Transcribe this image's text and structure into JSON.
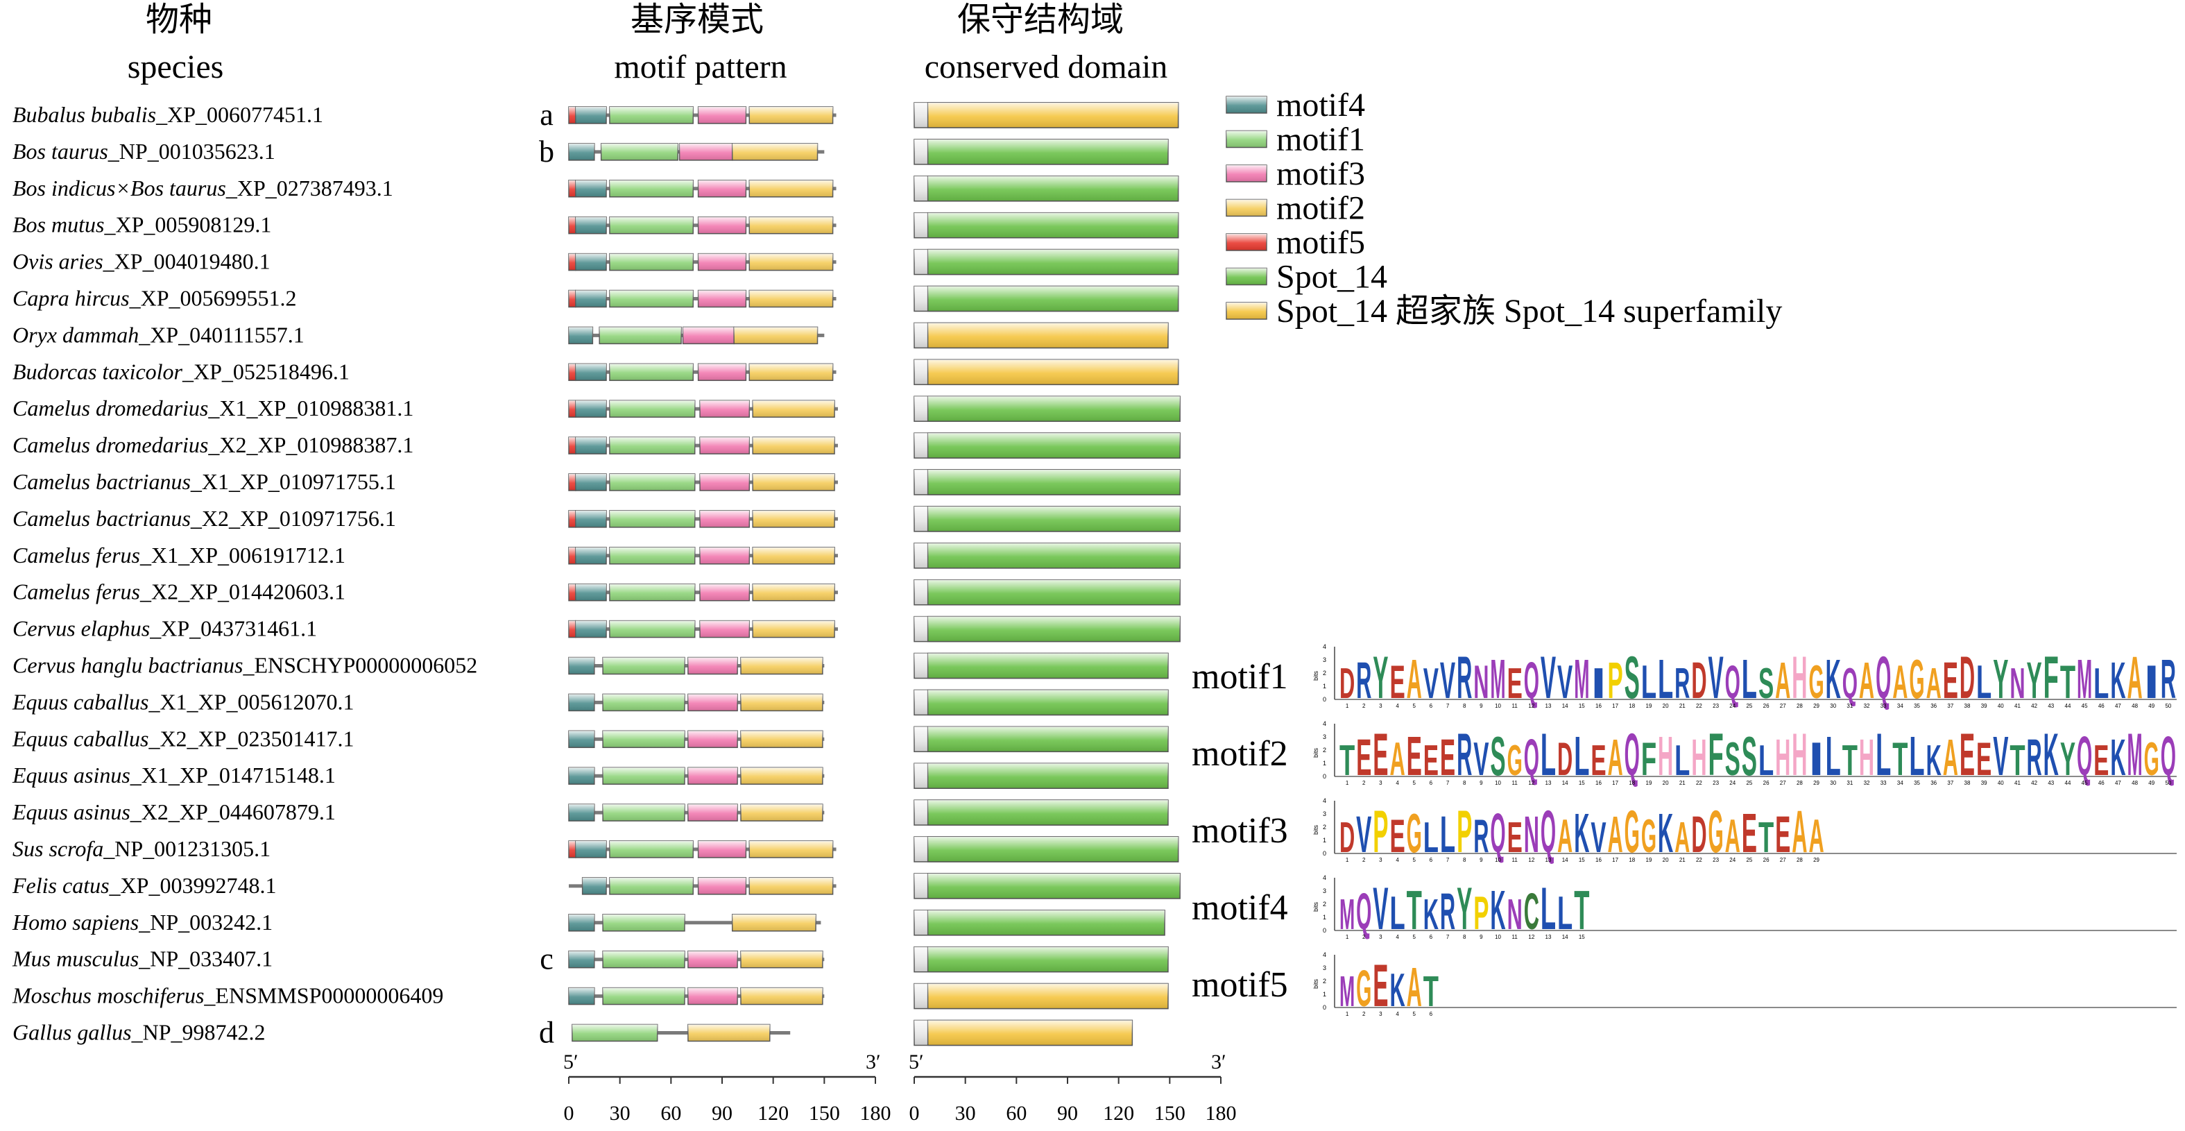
{
  "headers": {
    "species_cn": "物种",
    "species_en": "species",
    "motif_cn": "基序模式",
    "motif_en": "motif pattern",
    "domain_cn": "保守结构域",
    "domain_en": "conserved domain"
  },
  "colors": {
    "motif1": "#8fd47a",
    "motif2": "#f5cc5a",
    "motif3": "#f27ab0",
    "motif4": "#4f8f8f",
    "motif5": "#e8392f",
    "Spot_14": "#6cc24a",
    "superfamily": "#f5c540",
    "line": "#7a7a7a"
  },
  "legend": [
    {
      "key": "motif4",
      "label": "motif4"
    },
    {
      "key": "motif1",
      "label": "motif1"
    },
    {
      "key": "motif3",
      "label": "motif3"
    },
    {
      "key": "motif2",
      "label": "motif2"
    },
    {
      "key": "motif5",
      "label": "motif5"
    },
    {
      "key": "Spot_14",
      "label": "Spot_14"
    },
    {
      "key": "superfamily",
      "label": "Spot_14 超家族 Spot_14 superfamily"
    }
  ],
  "axis": {
    "ticks": [
      0,
      30,
      60,
      90,
      120,
      150,
      180
    ],
    "five_prime": "5′",
    "three_prime": "3′"
  },
  "patterns": {
    "A": {
      "motifs": [
        {
          "m": "motif5",
          "s": 0,
          "e": 4
        },
        {
          "m": "motif4",
          "s": 4,
          "e": 22
        },
        {
          "m": "motif1",
          "s": 24,
          "e": 73
        },
        {
          "m": "motif3",
          "s": 76,
          "e": 104
        },
        {
          "m": "motif2",
          "s": 106,
          "e": 155
        }
      ],
      "line": [
        0,
        157
      ],
      "domain": {
        "type": "superfamily",
        "s": 0,
        "e": 155
      }
    },
    "B": {
      "motifs": [
        {
          "m": "motif4",
          "s": 0,
          "e": 15
        },
        {
          "m": "motif1",
          "s": 19,
          "e": 64
        },
        {
          "m": "motif3",
          "s": 65,
          "e": 96
        },
        {
          "m": "motif2",
          "s": 96,
          "e": 146
        }
      ],
      "line": [
        0,
        150
      ],
      "domain": {
        "type": "Spot_14",
        "s": 0,
        "e": 149
      }
    },
    "C": {
      "motifs": [
        {
          "m": "motif5",
          "s": 0,
          "e": 4
        },
        {
          "m": "motif4",
          "s": 4,
          "e": 22
        },
        {
          "m": "motif1",
          "s": 24,
          "e": 73
        },
        {
          "m": "motif3",
          "s": 76,
          "e": 104
        },
        {
          "m": "motif2",
          "s": 106,
          "e": 155
        }
      ],
      "line": [
        0,
        157
      ],
      "domain": {
        "type": "Spot_14",
        "s": 0,
        "e": 155
      }
    },
    "D": {
      "motifs": [
        {
          "m": "motif4",
          "s": 0,
          "e": 14
        },
        {
          "m": "motif1",
          "s": 18,
          "e": 66
        },
        {
          "m": "motif3",
          "s": 67,
          "e": 97
        },
        {
          "m": "motif2",
          "s": 97,
          "e": 146
        }
      ],
      "line": [
        0,
        150
      ],
      "domain": {
        "type": "superfamily",
        "s": 0,
        "e": 149
      }
    },
    "E": {
      "motifs": [
        {
          "m": "motif5",
          "s": 0,
          "e": 4
        },
        {
          "m": "motif4",
          "s": 4,
          "e": 22
        },
        {
          "m": "motif1",
          "s": 24,
          "e": 74
        },
        {
          "m": "motif3",
          "s": 77,
          "e": 106
        },
        {
          "m": "motif2",
          "s": 108,
          "e": 156
        }
      ],
      "line": [
        0,
        158
      ],
      "domain": {
        "type": "Spot_14",
        "s": 0,
        "e": 156
      }
    },
    "F": {
      "motifs": [
        {
          "m": "motif4",
          "s": 0,
          "e": 15
        },
        {
          "m": "motif1",
          "s": 20,
          "e": 68
        },
        {
          "m": "motif3",
          "s": 70,
          "e": 99
        },
        {
          "m": "motif2",
          "s": 101,
          "e": 149
        }
      ],
      "line": [
        0,
        150
      ],
      "domain": {
        "type": "Spot_14",
        "s": 0,
        "e": 149
      }
    },
    "G": {
      "motifs": [
        {
          "m": "motif4",
          "s": 0,
          "e": 15
        },
        {
          "m": "motif1",
          "s": 20,
          "e": 68
        },
        {
          "m": "motif3",
          "s": 70,
          "e": 99
        },
        {
          "m": "motif2",
          "s": 101,
          "e": 149
        }
      ],
      "line": [
        0,
        150
      ],
      "domain": {
        "type": "superfamily",
        "s": 0,
        "e": 149
      }
    },
    "H": {
      "motifs": [
        {
          "m": "motif4",
          "s": 0,
          "e": 15
        },
        {
          "m": "motif1",
          "s": 20,
          "e": 68
        },
        {
          "m": "motif2",
          "s": 96,
          "e": 145
        }
      ],
      "line": [
        0,
        148
      ],
      "domain": {
        "type": "Spot_14",
        "s": 0,
        "e": 147
      }
    },
    "I": {
      "motifs": [
        {
          "m": "motif4",
          "s": 0,
          "e": 15
        },
        {
          "m": "motif1",
          "s": 20,
          "e": 68
        },
        {
          "m": "motif3",
          "s": 70,
          "e": 99
        },
        {
          "m": "motif2",
          "s": 101,
          "e": 149
        }
      ],
      "line": [
        0,
        150
      ],
      "domain": {
        "type": "superfamily",
        "s": 0,
        "e": 149
      }
    },
    "J": {
      "motifs": [
        {
          "m": "motif1",
          "s": 2,
          "e": 52
        },
        {
          "m": "motif2",
          "s": 70,
          "e": 118
        }
      ],
      "line": [
        2,
        130
      ],
      "domain": {
        "type": "superfamily",
        "s": 0,
        "e": 128
      }
    },
    "K": {
      "motifs": [
        {
          "m": "motif4",
          "s": 8,
          "e": 22
        },
        {
          "m": "motif1",
          "s": 24,
          "e": 73
        },
        {
          "m": "motif3",
          "s": 76,
          "e": 104
        },
        {
          "m": "motif2",
          "s": 106,
          "e": 155
        }
      ],
      "line": [
        0,
        157
      ],
      "domain": {
        "type": "Spot_14",
        "s": 0,
        "e": 156
      }
    }
  },
  "rows": [
    {
      "genus": "Bubalus bubalis",
      "acc": "_XP_006077451.1",
      "letter": "a",
      "p": "A"
    },
    {
      "genus": "Bos taurus",
      "acc": "_NP_001035623.1",
      "letter": "b",
      "p": "B"
    },
    {
      "genus": "Bos indicus×Bos taurus",
      "acc": "_XP_027387493.1",
      "letter": "",
      "p": "C"
    },
    {
      "genus": "Bos mutus",
      "acc": "_XP_005908129.1",
      "letter": "",
      "p": "C"
    },
    {
      "genus": "Ovis aries",
      "acc": "_XP_004019480.1",
      "letter": "",
      "p": "C"
    },
    {
      "genus": "Capra hircus",
      "acc": "_XP_005699551.2",
      "letter": "",
      "p": "C"
    },
    {
      "genus": "Oryx dammah",
      "acc": "_XP_040111557.1",
      "letter": "",
      "p": "D"
    },
    {
      "genus": "Budorcas taxicolor",
      "acc": "_XP_052518496.1",
      "letter": "",
      "p": "A"
    },
    {
      "genus": "Camelus dromedarius",
      "acc": "_X1_XP_010988381.1",
      "letter": "",
      "p": "E"
    },
    {
      "genus": "Camelus dromedarius",
      "acc": "_X2_XP_010988387.1",
      "letter": "",
      "p": "E"
    },
    {
      "genus": "Camelus bactrianus",
      "acc": "_X1_XP_010971755.1",
      "letter": "",
      "p": "E"
    },
    {
      "genus": "Camelus bactrianus",
      "acc": "_X2_XP_010971756.1",
      "letter": "",
      "p": "E"
    },
    {
      "genus": "Camelus ferus",
      "acc": "_X1_XP_006191712.1",
      "letter": "",
      "p": "E"
    },
    {
      "genus": "Camelus ferus",
      "acc": "_X2_XP_014420603.1",
      "letter": "",
      "p": "E"
    },
    {
      "genus": "Cervus elaphus",
      "acc": "_XP_043731461.1",
      "letter": "",
      "p": "E"
    },
    {
      "genus": "Cervus hanglu bactrianus",
      "acc": "_ENSCHYP00000006052",
      "letter": "",
      "p": "F"
    },
    {
      "genus": "Equus caballus",
      "acc": "_X1_XP_005612070.1",
      "letter": "",
      "p": "F"
    },
    {
      "genus": "Equus caballus",
      "acc": "_X2_XP_023501417.1",
      "letter": "",
      "p": "F"
    },
    {
      "genus": "Equus asinus",
      "acc": "_X1_XP_014715148.1",
      "letter": "",
      "p": "F"
    },
    {
      "genus": "Equus asinus",
      "acc": "_X2_XP_044607879.1",
      "letter": "",
      "p": "F"
    },
    {
      "genus": "Sus scrofa",
      "acc": "_NP_001231305.1",
      "letter": "",
      "p": "C"
    },
    {
      "genus": "Felis catus",
      "acc": "_XP_003992748.1",
      "letter": "",
      "p": "K"
    },
    {
      "genus": "Homo sapiens",
      "acc": "_NP_003242.1",
      "letter": "",
      "p": "H"
    },
    {
      "genus": "Mus musculus",
      "acc": "_NP_033407.1",
      "letter": "c",
      "p": "F"
    },
    {
      "genus": "Moschus moschiferus",
      "acc": "_ENSMMSP00000006409",
      "letter": "",
      "p": "G"
    },
    {
      "genus": "Gallus gallus",
      "acc": "_NP_998742.2",
      "letter": "d",
      "p": "J"
    }
  ],
  "logos": [
    {
      "name": "motif1",
      "seq": "DRYEAVVRNMEQVVMIPSLLRDVQLSAHGKQAQAGAEDLYNYFTMLKAIR",
      "ticks": 50
    },
    {
      "name": "motif2",
      "seq": "TEEAEEERVSGQLDLEAQFHLHFSSLHHILTHLTLKAEEVTRKYQEKMGQ",
      "ticks": 50
    },
    {
      "name": "motif3",
      "seq": "DVPEGLLPRQENQAKVAGGKADGAETEAA",
      "ticks": 29
    },
    {
      "name": "motif4",
      "seq": "MQVLTKRYPKNCLLT",
      "ticks": 15
    },
    {
      "name": "motif5",
      "seq": "MGEKAT",
      "ticks": 6
    }
  ]
}
